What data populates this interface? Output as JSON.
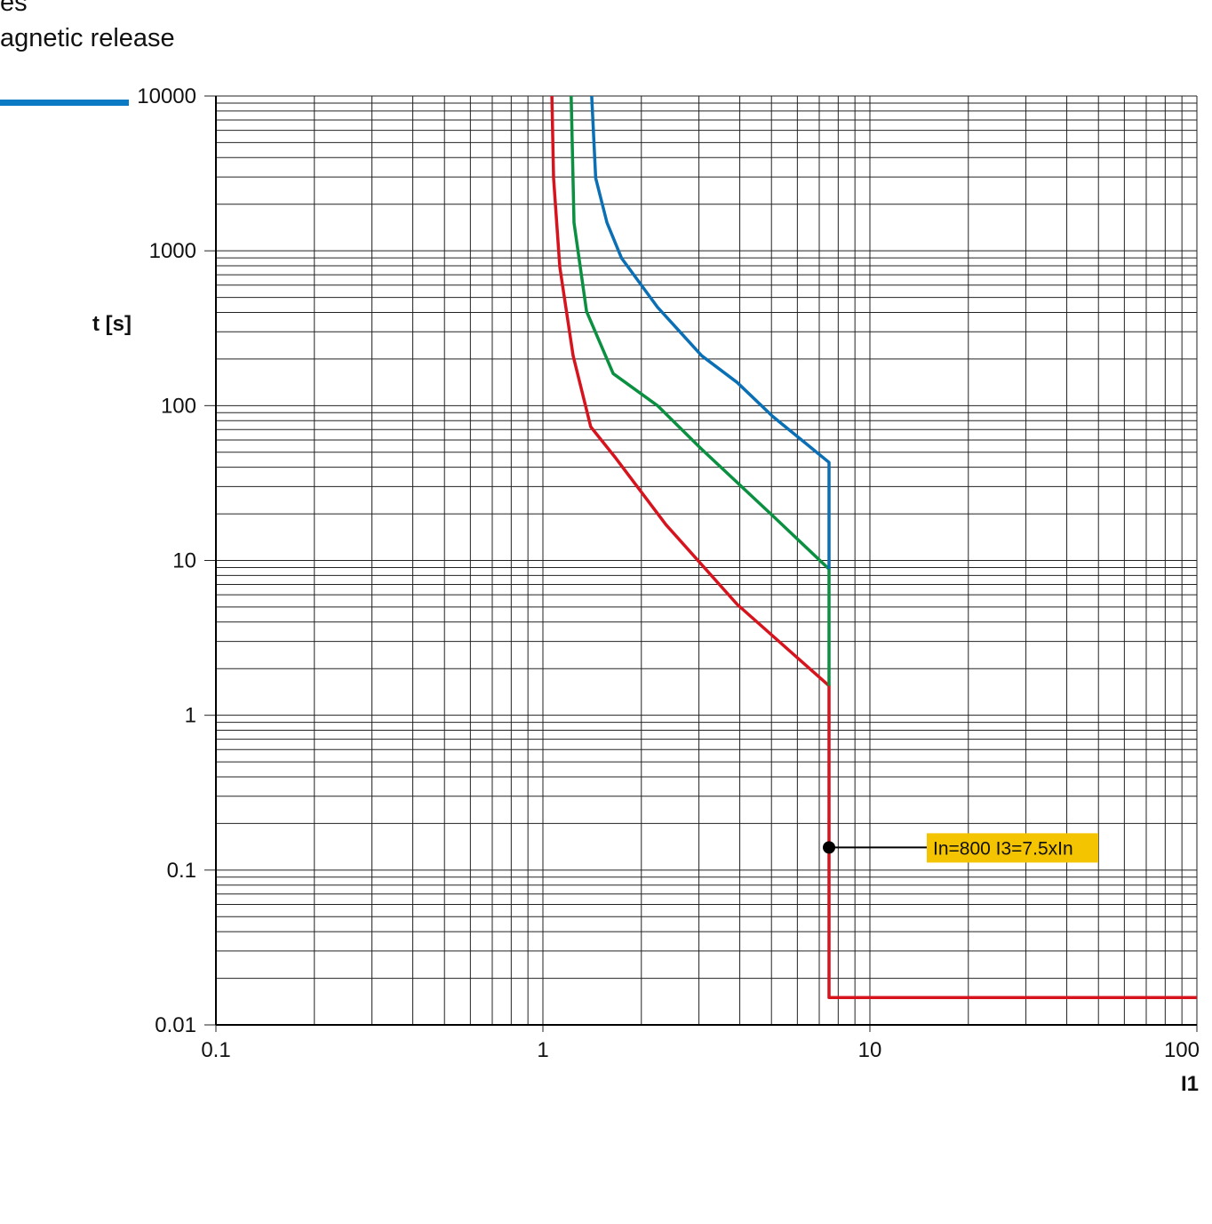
{
  "chart_data": {
    "type": "line",
    "title": [
      "es",
      "agnetic release"
    ],
    "y_label": "t [s]",
    "x_label": "I1",
    "log_x": true,
    "log_y": true,
    "grid": true,
    "xlim": [
      0.1,
      100
    ],
    "xticks": [
      0.1,
      1,
      10,
      100
    ],
    "ylim": [
      0.01,
      10000
    ],
    "yticks": [
      0.01,
      0.1,
      1,
      10,
      100,
      1000,
      10000
    ],
    "series": [
      {
        "color": "#d7141e",
        "x": [
          1.065,
          1.078,
          1.126,
          1.237,
          1.4,
          1.67,
          2.38,
          3.93,
          7.5,
          7.5,
          100
        ],
        "values": [
          10000,
          2950,
          787,
          210,
          73,
          45.8,
          17,
          5.2,
          1.55,
          0.015,
          0.015
        ]
      },
      {
        "color": "#0a9040",
        "x": [
          1.22,
          1.245,
          1.36,
          1.64,
          2.24,
          3.06,
          5.05,
          7.5,
          7.5
        ],
        "values": [
          10000,
          1520,
          406,
          161,
          100,
          52.3,
          19.4,
          8.8,
          1.55
        ]
      },
      {
        "color": "#0a6fb4",
        "x": [
          1.41,
          1.45,
          1.57,
          1.74,
          2.24,
          3.06,
          3.93,
          5.05,
          7.5,
          7.5
        ],
        "values": [
          10000,
          2950,
          1520,
          897,
          433,
          210,
          141,
          85,
          43,
          8.8
        ]
      }
    ],
    "annotation": {
      "text": "In=800 I3=7.5xIn",
      "x": 7.5,
      "y": 0.14
    }
  }
}
